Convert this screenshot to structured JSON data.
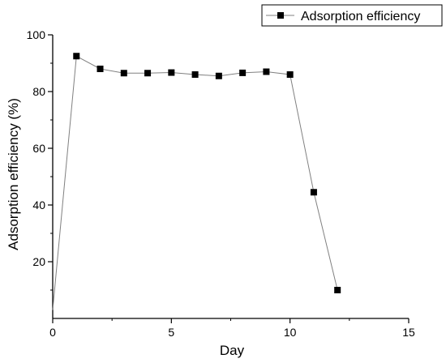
{
  "chart_data": {
    "type": "line",
    "title": "",
    "xlabel": "Day",
    "ylabel": "Adsorption efficiency (%)",
    "xlim": [
      0,
      15
    ],
    "ylim": [
      0,
      100
    ],
    "x_ticks": [
      0,
      5,
      10,
      15
    ],
    "x_tick_labels": [
      "0",
      "5",
      "10",
      "15"
    ],
    "y_ticks": [
      20,
      40,
      60,
      80,
      100
    ],
    "y_tick_labels": [
      "20",
      "40",
      "60",
      "80",
      "100"
    ],
    "grid": false,
    "legend_position": "top-right",
    "series": [
      {
        "name": "Adsorption efficiency",
        "marker": "square",
        "color": "#000000",
        "line_color": "#808080",
        "x": [
          0,
          1,
          2,
          3,
          4,
          5,
          6,
          7,
          8,
          9,
          10,
          11,
          12
        ],
        "y": [
          3,
          92.5,
          88,
          86.5,
          86.5,
          86.7,
          86,
          85.5,
          86.6,
          87,
          86,
          44.5,
          10
        ],
        "marker_shown": [
          false,
          true,
          true,
          true,
          true,
          true,
          true,
          true,
          true,
          true,
          true,
          true,
          true
        ]
      }
    ]
  }
}
